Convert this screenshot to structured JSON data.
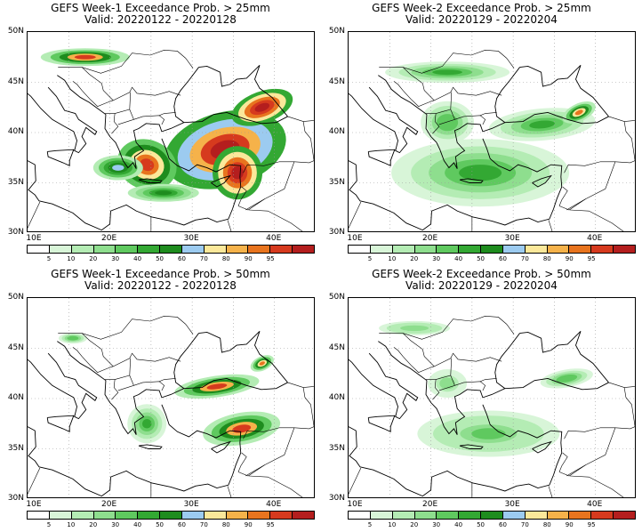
{
  "panels": [
    {
      "title": "GEFS Week-1 Exceedance Prob. > 25mm",
      "valid": "Valid: 20220122 - 20220128",
      "intensity": 1.0
    },
    {
      "title": "GEFS Week-2 Exceedance Prob. > 25mm",
      "valid": "Valid: 20220129 - 20220204",
      "intensity": 0.45
    },
    {
      "title": "GEFS Week-1 Exceedance Prob. > 50mm",
      "valid": "Valid: 20220122 - 20220128",
      "intensity": 0.7
    },
    {
      "title": "GEFS Week-2 Exceedance Prob. > 50mm",
      "valid": "Valid: 20220129 - 20220204",
      "intensity": 0.25
    }
  ],
  "lat_labels": [
    "50N",
    "45N",
    "40N",
    "35N",
    "30N"
  ],
  "lon_labels": [
    "10E",
    "20E",
    "30E",
    "40E"
  ],
  "colorbar": {
    "ticks": [
      "5",
      "10",
      "20",
      "30",
      "40",
      "50",
      "60",
      "70",
      "80",
      "90",
      "95"
    ],
    "colors": [
      "#ffffff",
      "#d8f5d8",
      "#b4ecb4",
      "#8ede8e",
      "#5fc95f",
      "#33a833",
      "#1e8c1e",
      "#9ccbf0",
      "#fbe89a",
      "#f5b24a",
      "#e8741e",
      "#d63a1e",
      "#b41e1e"
    ]
  }
}
